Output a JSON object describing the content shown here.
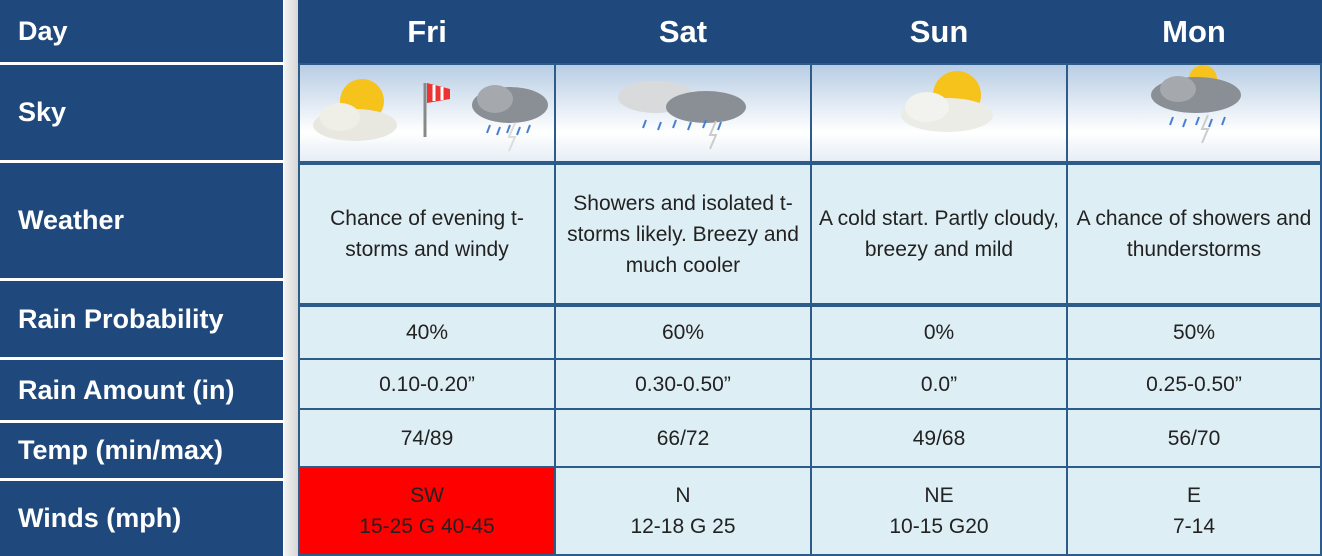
{
  "table": {
    "header": [
      "Day",
      "Fri",
      "Sat",
      "Sun",
      "Mon"
    ],
    "rows": [
      {
        "label": "Sky"
      },
      {
        "label": "Weather",
        "cells": [
          "Chance of evening t-storms and windy",
          "Showers and isolated t-storms likely. Breezy and much cooler",
          "A cold start. Partly cloudy, breezy and mild",
          "A chance of showers and thunderstorms"
        ]
      },
      {
        "label": "Rain Probability",
        "cells": [
          "40%",
          "60%",
          "0%",
          "50%"
        ]
      },
      {
        "label": "Rain Amount (in)",
        "cells": [
          "0.10-0.20”",
          "0.30-0.50”",
          "0.0”",
          "0.25-0.50”"
        ]
      },
      {
        "label": "Temp (min/max)",
        "cells": [
          "74/89",
          "66/72",
          "49/68",
          "56/70"
        ]
      },
      {
        "label": "Winds (mph)",
        "cells": [
          [
            "SW",
            "15-25 G 40-45"
          ],
          [
            "N",
            "12-18 G 25"
          ],
          [
            "NE",
            "10-15 G20"
          ],
          [
            "E",
            "7-14"
          ]
        ]
      }
    ]
  }
}
